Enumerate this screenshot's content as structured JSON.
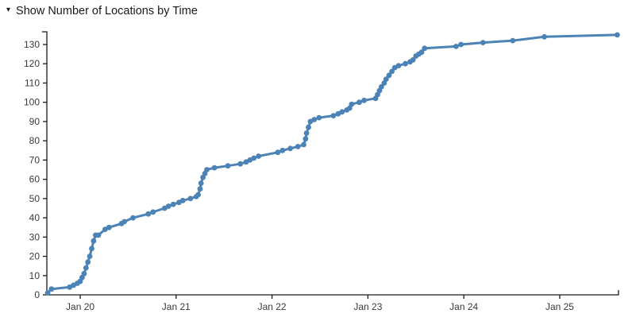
{
  "panel": {
    "collapse_icon_glyph": "▾",
    "title": "Show Number of Locations by Time"
  },
  "chart_data": {
    "type": "line",
    "title": "Show Number of Locations by Time",
    "xlabel": "",
    "ylabel": "",
    "x_unit": "day of January (decimal = fraction of day)",
    "xlim": [
      19.652,
      25.613
    ],
    "ylim": [
      0,
      136.6
    ],
    "grid": false,
    "legend": "none",
    "line_color": "#4c83b6",
    "axis_color": "#1a1a1a",
    "tick_label_color": "#3a3a3a",
    "marker": "circle",
    "marker_radius": 3.4,
    "line_width": 3,
    "x_ticks": [
      {
        "value": 20,
        "label": "Jan 20"
      },
      {
        "value": 21,
        "label": "Jan 21"
      },
      {
        "value": 22,
        "label": "Jan 22"
      },
      {
        "value": 23,
        "label": "Jan 23"
      },
      {
        "value": 24,
        "label": "Jan 24"
      },
      {
        "value": 25,
        "label": "Jan 25"
      }
    ],
    "y_ticks": [
      0,
      10,
      20,
      30,
      40,
      50,
      60,
      70,
      80,
      90,
      100,
      110,
      120,
      130
    ],
    "series_name": "Number of Locations",
    "points": [
      [
        19.66,
        1
      ],
      [
        19.7,
        3
      ],
      [
        19.89,
        4
      ],
      [
        19.93,
        5
      ],
      [
        19.97,
        6
      ],
      [
        20.0,
        7
      ],
      [
        20.02,
        9
      ],
      [
        20.04,
        11
      ],
      [
        20.06,
        14
      ],
      [
        20.08,
        17
      ],
      [
        20.1,
        20
      ],
      [
        20.12,
        24
      ],
      [
        20.14,
        28
      ],
      [
        20.16,
        31
      ],
      [
        20.19,
        31
      ],
      [
        20.26,
        34
      ],
      [
        20.3,
        35
      ],
      [
        20.43,
        37
      ],
      [
        20.46,
        38
      ],
      [
        20.55,
        40
      ],
      [
        20.71,
        42
      ],
      [
        20.76,
        43
      ],
      [
        20.88,
        45
      ],
      [
        20.92,
        46
      ],
      [
        20.97,
        47
      ],
      [
        21.03,
        48
      ],
      [
        21.07,
        49
      ],
      [
        21.15,
        50
      ],
      [
        21.21,
        51
      ],
      [
        21.23,
        52
      ],
      [
        21.25,
        55
      ],
      [
        21.26,
        58
      ],
      [
        21.28,
        61
      ],
      [
        21.3,
        63
      ],
      [
        21.32,
        65
      ],
      [
        21.4,
        66
      ],
      [
        21.54,
        67
      ],
      [
        21.67,
        68
      ],
      [
        21.73,
        69
      ],
      [
        21.77,
        70
      ],
      [
        21.81,
        71
      ],
      [
        21.86,
        72
      ],
      [
        22.06,
        74
      ],
      [
        22.11,
        75
      ],
      [
        22.19,
        76
      ],
      [
        22.27,
        77
      ],
      [
        22.33,
        78
      ],
      [
        22.35,
        81
      ],
      [
        22.36,
        84
      ],
      [
        22.38,
        87
      ],
      [
        22.4,
        90
      ],
      [
        22.44,
        91
      ],
      [
        22.49,
        92
      ],
      [
        22.64,
        93
      ],
      [
        22.69,
        94
      ],
      [
        22.73,
        95
      ],
      [
        22.78,
        96
      ],
      [
        22.81,
        97
      ],
      [
        22.83,
        99
      ],
      [
        22.91,
        100
      ],
      [
        22.96,
        101
      ],
      [
        23.08,
        102
      ],
      [
        23.1,
        104
      ],
      [
        23.12,
        106
      ],
      [
        23.14,
        108
      ],
      [
        23.17,
        110
      ],
      [
        23.19,
        112
      ],
      [
        23.22,
        114
      ],
      [
        23.25,
        116
      ],
      [
        23.28,
        118
      ],
      [
        23.32,
        119
      ],
      [
        23.39,
        120
      ],
      [
        23.44,
        121
      ],
      [
        23.47,
        122
      ],
      [
        23.5,
        124
      ],
      [
        23.53,
        125
      ],
      [
        23.56,
        126
      ],
      [
        23.59,
        128
      ],
      [
        23.92,
        129
      ],
      [
        23.97,
        130
      ],
      [
        24.2,
        131
      ],
      [
        24.51,
        132
      ],
      [
        24.84,
        134
      ],
      [
        25.6,
        135
      ]
    ]
  }
}
